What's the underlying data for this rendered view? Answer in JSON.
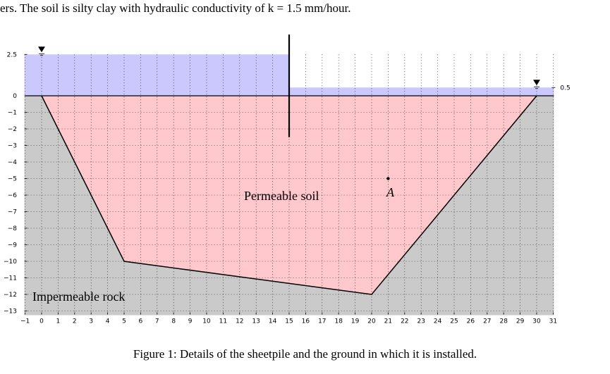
{
  "header_text": "ers.  The soil is silty clay with hydraulic conductivity of k = 1.5 mm/hour.",
  "caption": "Figure 1: Details of the sheetpile and the ground in which it is installed.",
  "labels": {
    "permeable": "Permeable soil",
    "impermeable": "Impermeable rock",
    "point_a": "A"
  },
  "axes": {
    "x_ticks": [
      "−1",
      "0",
      "1",
      "2",
      "3",
      "4",
      "5",
      "6",
      "7",
      "8",
      "9",
      "10",
      "11",
      "12",
      "13",
      "14",
      "15",
      "16",
      "17",
      "18",
      "19",
      "20",
      "21",
      "22",
      "23",
      "24",
      "25",
      "26",
      "27",
      "28",
      "29",
      "30",
      "31"
    ],
    "y_ticks": [
      "2.5",
      "0",
      "−1",
      "−2",
      "−3",
      "−4",
      "−5",
      "−6",
      "−7",
      "−8",
      "−9",
      "−10",
      "−11",
      "−12",
      "−13"
    ],
    "right_tick": "0.5",
    "xlim": [
      -1,
      31
    ],
    "ylim": [
      -13,
      2.5
    ],
    "grid": true
  },
  "geometry": {
    "soil_polygon": [
      [
        0,
        0
      ],
      [
        5,
        -10
      ],
      [
        20,
        -12
      ],
      [
        30,
        0
      ]
    ],
    "left_water_level": 2.5,
    "right_water_level": 0.5,
    "sheetpile": {
      "x": 15,
      "top": 3.7,
      "bottom": -2.5
    },
    "point_a": {
      "x": 21,
      "y": -5
    }
  },
  "colors": {
    "water": "#cbc8fe",
    "soil": "#ffc8cc",
    "rock": "#cacaca",
    "line": "#000000"
  }
}
